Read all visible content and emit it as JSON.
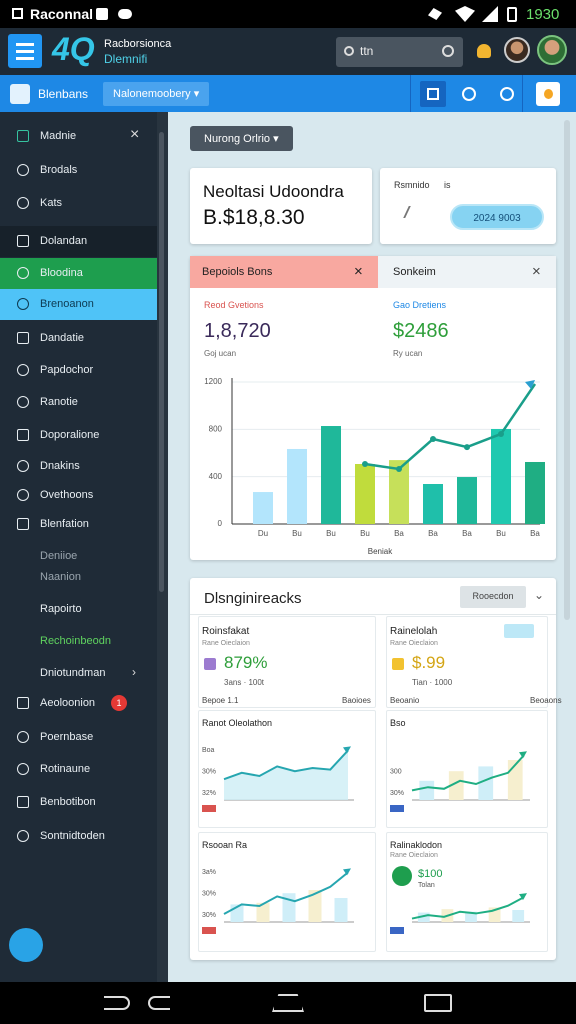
{
  "status_bar": {
    "left": "Raconnal",
    "time": "1930"
  },
  "header": {
    "logo": "4Q",
    "brand_line1": "Racborsionca",
    "brand_line2": "Dlemnifi",
    "search": "ttn"
  },
  "toolbar": {
    "title": "Blenbans",
    "dropdown": "Nalonemoobery ▾"
  },
  "sidebar": {
    "items": [
      "Madnie",
      "Brodals",
      "Kats",
      "Dolandan",
      "Bloodina",
      "Brenoanon",
      "Dandatie",
      "Papdochor",
      "Ranotie",
      "Doporalione",
      "Dnakins",
      "Ovethoons",
      "Blenfation",
      "Deniioe",
      "Naanion",
      "Rapoirto",
      "Rechoinbeodn",
      "Dniotundman",
      "Aeoloonion",
      "Poernbase",
      "Rotinaune",
      "Benbotibon",
      "Sontnidtoden"
    ],
    "badge": "1"
  },
  "filter_button": "Nurong Orlrio ▾",
  "summary_card": {
    "title": "Neoltasi Udoondra",
    "value": "B.$18,8.30"
  },
  "date_card": {
    "label": "Rsmnido",
    "separator": "is",
    "pill": "2024 9003"
  },
  "overview": {
    "tabs": [
      "Bepoiols Bons",
      "Sonkeim"
    ],
    "stats": [
      {
        "label": "Reod Gvetions",
        "value": "1,8,720",
        "note": "Goj ucan"
      },
      {
        "label": "Gao Dretiens",
        "value": "$2486",
        "note": "Ry ucan"
      }
    ],
    "chart": {
      "type": "bar",
      "x_label": "Beniak",
      "categories": [
        "Du",
        "Bu",
        "Bu",
        "Bu",
        "Ba",
        "Ba",
        "Ba",
        "Bu",
        "Ba"
      ],
      "bar_values": [
        270,
        634,
        828,
        507,
        540,
        338,
        397,
        803,
        524
      ],
      "bar_colors": [
        "#b3e5fc",
        "#b3e5fc",
        "#1fb89a",
        "#c0dc3c",
        "#c6e05a",
        "#1fbfaa",
        "#1fb89a",
        "#1fc9b0",
        "#1fae83"
      ],
      "line_values": [
        null,
        null,
        null,
        507,
        465,
        718,
        650,
        761,
        1183
      ],
      "line_color": "#1a9e8a",
      "ylim": [
        0,
        1200
      ],
      "yticks": [
        0,
        400,
        800,
        1200
      ]
    }
  },
  "insights": {
    "title": "Dlsnginireacks",
    "button": "Rooecdon",
    "cards": [
      {
        "title": "Roinsfakat",
        "subtitle": "Rane Oieclaion",
        "value": "879%",
        "note": "3ans · 100t",
        "footer_left": "Bepoe 1.1",
        "footer_right": "Baoioes"
      },
      {
        "title": "Rainelolah",
        "subtitle": "Rane Oieclaion",
        "value": "$.99",
        "note": "Tian · 1000",
        "footer_left": "Beoanio",
        "footer_right": "Beoaons"
      }
    ],
    "charts": [
      {
        "title": "Ranot Oleolathon",
        "labels": [
          "Boa",
          "30%",
          "32%"
        ],
        "values": [
          2.6,
          3.4,
          3.0,
          4.2,
          3.6,
          4.0,
          3.8,
          6.2
        ],
        "bars": [],
        "ylim": [
          0,
          7
        ],
        "color": "#26a6b0",
        "area": true
      },
      {
        "title": "Bso",
        "labels": [
          "",
          "300",
          "30%"
        ],
        "values": [
          1.2,
          1.6,
          1.4,
          2.4,
          2.0,
          2.8,
          3.4,
          5.6
        ],
        "bars": [
          2.4,
          3.6,
          4.2,
          5.0
        ],
        "ylim": [
          0,
          7
        ],
        "color": "#1fae83",
        "area": false
      },
      {
        "title": "Rsooan Ra",
        "labels": [
          "3a%",
          "30%",
          "30%"
        ],
        "values": [
          1.0,
          2.2,
          2.0,
          3.2,
          2.6,
          3.4,
          4.4,
          6.2
        ],
        "bars": [
          2.2,
          2.4,
          3.6,
          4.0,
          3.0
        ],
        "ylim": [
          0,
          7
        ],
        "color": "#26a6b0",
        "area": false
      },
      {
        "title": "Ralinaklodon",
        "subtitle": "Rane Oieclaion",
        "value": "$100",
        "note": "Tolan",
        "labels": [
          "",
          "",
          ""
        ],
        "values": [
          0.8,
          1.6,
          1.2,
          2.4,
          2.0,
          2.6,
          3.8,
          5.8
        ],
        "bars": [
          2.2,
          3.0,
          2.4,
          3.4,
          2.8
        ],
        "ylim": [
          0,
          7
        ],
        "color": "#1fae83",
        "area": false
      }
    ]
  }
}
